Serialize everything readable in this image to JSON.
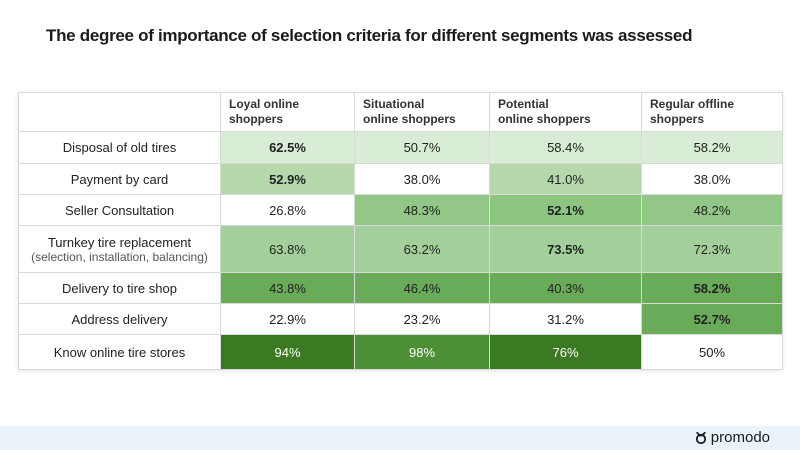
{
  "title": "The degree of importance of selection criteria for different segments was assessed",
  "chart_data": {
    "type": "table",
    "columns": [
      [
        "Loyal online shoppers"
      ],
      [
        "Situational",
        "online shoppers"
      ],
      [
        "Potential",
        "online shoppers"
      ],
      [
        "Regular offline",
        "shoppers"
      ]
    ],
    "rows": [
      {
        "label": "Disposal of old tires",
        "sublabel": "",
        "values": [
          "62.5%",
          "50.7%",
          "58.4%",
          "58.2%"
        ],
        "bold": [
          true,
          false,
          false,
          false
        ],
        "colors": [
          "#d9ecd5",
          "#d9ecd5",
          "#d9ecd5",
          "#d9ecd5"
        ],
        "text_colors": [
          "#222",
          "#222",
          "#222",
          "#222"
        ]
      },
      {
        "label": "Payment by card",
        "sublabel": "",
        "values": [
          "52.9%",
          "38.0%",
          "41.0%",
          "38.0%"
        ],
        "bold": [
          true,
          false,
          false,
          false
        ],
        "colors": [
          "#b5d9ad",
          "#ffffff",
          "#b5d9ad",
          "#ffffff"
        ],
        "text_colors": [
          "#222",
          "#222",
          "#222",
          "#222"
        ]
      },
      {
        "label": "Seller Consultation",
        "sublabel": "",
        "values": [
          "26.8%",
          "48.3%",
          "52.1%",
          "48.2%"
        ],
        "bold": [
          false,
          false,
          true,
          false
        ],
        "colors": [
          "#ffffff",
          "#93c787",
          "#8cc480",
          "#93c787"
        ],
        "text_colors": [
          "#222",
          "#222",
          "#222",
          "#222"
        ]
      },
      {
        "label": "Turnkey tire replacement",
        "sublabel": "(selection, installation, balancing)",
        "values": [
          "63.8%",
          "63.2%",
          "73.5%",
          "72.3%"
        ],
        "bold": [
          false,
          false,
          true,
          false
        ],
        "colors": [
          "#a3d09a",
          "#a3d09a",
          "#a3d09a",
          "#a3d09a"
        ],
        "text_colors": [
          "#222",
          "#222",
          "#222",
          "#222"
        ]
      },
      {
        "label": "Delivery to tire shop",
        "sublabel": "",
        "values": [
          "43.8%",
          "46.4%",
          "40.3%",
          "58.2%"
        ],
        "bold": [
          false,
          false,
          false,
          true
        ],
        "colors": [
          "#6aab5a",
          "#6aab5a",
          "#6aab5a",
          "#6aab5a"
        ],
        "text_colors": [
          "#222",
          "#222",
          "#222",
          "#222"
        ]
      },
      {
        "label": "Address delivery",
        "sublabel": "",
        "values": [
          "22.9%",
          "23.2%",
          "31.2%",
          "52.7%"
        ],
        "bold": [
          false,
          false,
          false,
          true
        ],
        "colors": [
          "#ffffff",
          "#ffffff",
          "#ffffff",
          "#6aab5a"
        ],
        "text_colors": [
          "#222",
          "#222",
          "#222",
          "#222"
        ]
      },
      {
        "label": "Know online tire stores",
        "sublabel": "",
        "values": [
          "94%",
          "98%",
          "76%",
          "50%"
        ],
        "bold": [
          false,
          false,
          false,
          false
        ],
        "colors": [
          "#3b7a23",
          "#4c8f37",
          "#3b7a23",
          "#ffffff"
        ],
        "text_colors": [
          "#ffffff",
          "#ffffff",
          "#ffffff",
          "#222"
        ]
      }
    ]
  },
  "logo": {
    "text": "promodo",
    "icon": "promodo-logo-icon"
  }
}
